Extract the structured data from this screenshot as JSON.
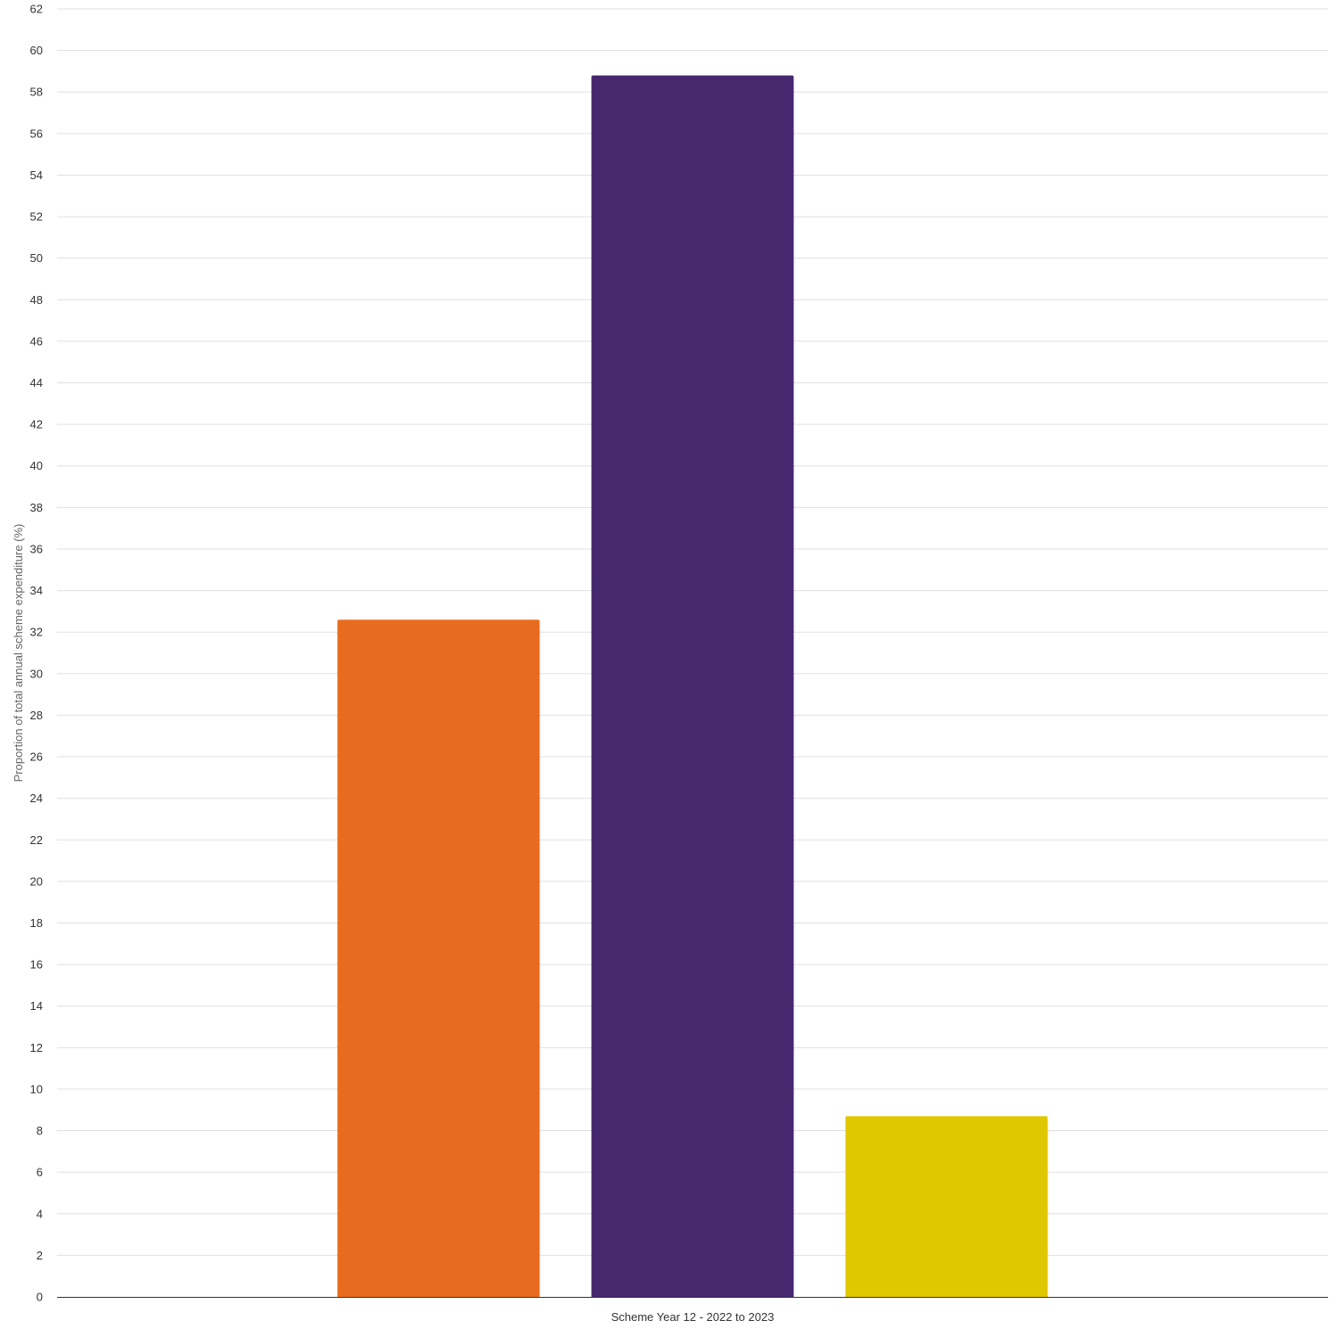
{
  "chart_data": {
    "type": "bar",
    "categories": [
      "Scheme Year 12 - 2022 to 2023"
    ],
    "series": [
      {
        "values": [
          32.6
        ],
        "color": "#e86c1f"
      },
      {
        "values": [
          58.8
        ],
        "color": "#46286e"
      },
      {
        "values": [
          8.7
        ],
        "color": "#e0c800"
      }
    ],
    "xlabel": "",
    "ylabel": "Proportion of total annual scheme expenditure (%)",
    "ylim": [
      0,
      62
    ],
    "yticks": [
      0,
      2,
      4,
      6,
      8,
      10,
      12,
      14,
      16,
      18,
      20,
      22,
      24,
      26,
      28,
      30,
      32,
      34,
      36,
      38,
      40,
      42,
      44,
      46,
      48,
      50,
      52,
      54,
      56,
      58,
      60,
      62
    ],
    "grid": true,
    "legend": "none"
  }
}
